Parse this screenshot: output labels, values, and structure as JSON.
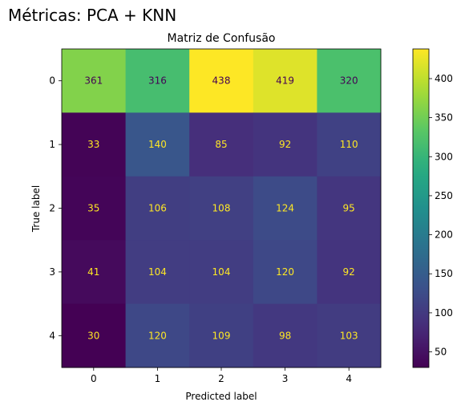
{
  "suptitle": "Métricas: PCA + KNN",
  "chart_data": {
    "type": "heatmap",
    "title": "Matriz de Confusão",
    "xlabel": "Predicted label",
    "ylabel": "True label",
    "x_categories": [
      "0",
      "1",
      "2",
      "3",
      "4"
    ],
    "y_categories": [
      "0",
      "1",
      "2",
      "3",
      "4"
    ],
    "matrix": [
      [
        361,
        316,
        438,
        419,
        320
      ],
      [
        33,
        140,
        85,
        92,
        110
      ],
      [
        35,
        106,
        108,
        124,
        95
      ],
      [
        41,
        104,
        104,
        120,
        92
      ],
      [
        30,
        120,
        109,
        98,
        103
      ]
    ],
    "colormap": "viridis",
    "vmin": 30,
    "vmax": 438,
    "colorbar_ticks": [
      50,
      100,
      150,
      200,
      250,
      300,
      350,
      400
    ],
    "grid": false,
    "text_colors": {
      "on_dark": "#fde725",
      "on_light": "#440154"
    }
  }
}
